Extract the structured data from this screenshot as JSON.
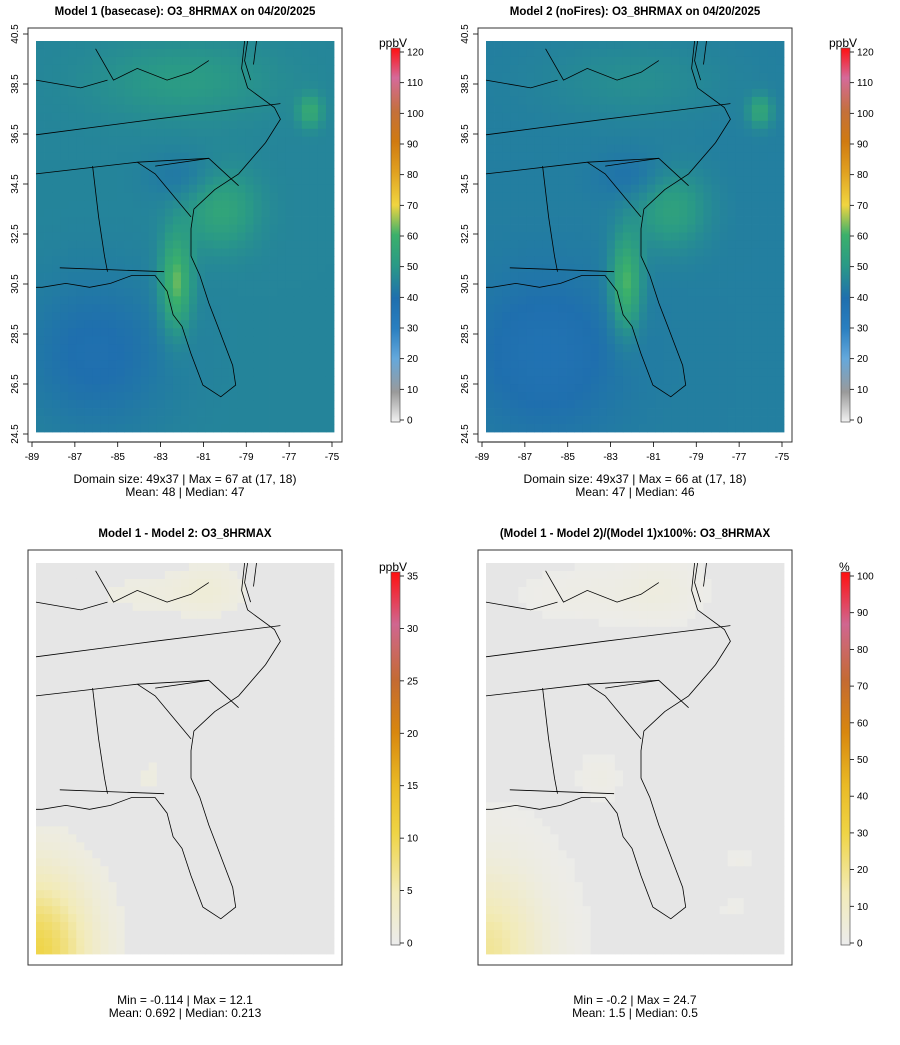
{
  "chart_data": [
    {
      "type": "heatmap",
      "title": "Model 1 (basecase): O3_8HRMAX on 04/20/2025",
      "x_ticks": [
        "-89",
        "-87",
        "-85",
        "-83",
        "-81",
        "-79",
        "-77",
        "-75"
      ],
      "y_ticks": [
        "24.5",
        "26.5",
        "28.5",
        "30.5",
        "32.5",
        "34.5",
        "36.5",
        "38.5",
        "40.5"
      ],
      "xlim": [
        -89,
        -75
      ],
      "ylim": [
        24.5,
        40.5
      ],
      "colorbar": {
        "unit": "ppbV",
        "ticks": [
          "0",
          "10",
          "20",
          "30",
          "40",
          "50",
          "60",
          "70",
          "80",
          "90",
          "100",
          "110",
          "120"
        ],
        "min": 0,
        "max": 120
      },
      "stats_line1": "Domain size: 49x37 | Max = 67 at (17, 18)",
      "stats_line2": "Mean: 48 |  Median: 47",
      "summary": {
        "max": 67,
        "mean": 48,
        "median": 47
      }
    },
    {
      "type": "heatmap",
      "title": "Model 2 (noFires): O3_8HRMAX on 04/20/2025",
      "x_ticks": [
        "-89",
        "-87",
        "-85",
        "-83",
        "-81",
        "-79",
        "-77",
        "-75"
      ],
      "y_ticks": [
        "24.5",
        "26.5",
        "28.5",
        "30.5",
        "32.5",
        "34.5",
        "36.5",
        "38.5",
        "40.5"
      ],
      "xlim": [
        -89,
        -75
      ],
      "ylim": [
        24.5,
        40.5
      ],
      "colorbar": {
        "unit": "ppbV",
        "ticks": [
          "0",
          "10",
          "20",
          "30",
          "40",
          "50",
          "60",
          "70",
          "80",
          "90",
          "100",
          "110",
          "120"
        ],
        "min": 0,
        "max": 120
      },
      "stats_line1": "Domain size: 49x37 | Max = 66 at (17, 18)",
      "stats_line2": "Mean: 47 |  Median: 46",
      "summary": {
        "max": 66,
        "mean": 47,
        "median": 46
      }
    },
    {
      "type": "heatmap",
      "title": "Model 1 - Model 2: O3_8HRMAX",
      "colorbar": {
        "unit": "ppbV",
        "ticks": [
          "0",
          "5",
          "10",
          "15",
          "20",
          "25",
          "30",
          "35"
        ],
        "min": 0,
        "max": 35
      },
      "stats_line1": "Min = -0.114 | Max = 12.1",
      "stats_line2": "Mean: 0.692 |  Median: 0.213",
      "summary": {
        "min": -0.114,
        "max": 12.1,
        "mean": 0.692,
        "median": 0.213
      }
    },
    {
      "type": "heatmap",
      "title": "(Model 1 - Model 2)/(Model 1)x100%: O3_8HRMAX",
      "colorbar": {
        "unit": "%",
        "ticks": [
          "0",
          "10",
          "20",
          "30",
          "40",
          "50",
          "60",
          "70",
          "80",
          "90",
          "100"
        ],
        "min": 0,
        "max": 100
      },
      "stats_line1": "Min = -0.2 | Max = 24.7",
      "stats_line2": "Mean: 1.5 |  Median: 0.5",
      "summary": {
        "min": -0.2,
        "max": 24.7,
        "mean": 1.5,
        "median": 0.5
      }
    }
  ],
  "colors": {
    "map_low": "#2a6fb0",
    "map_mid": "#2fa07a",
    "map_high": "#f0d540",
    "diff_bg": "#e6e6e6",
    "diff_high": "#e8a71a"
  }
}
